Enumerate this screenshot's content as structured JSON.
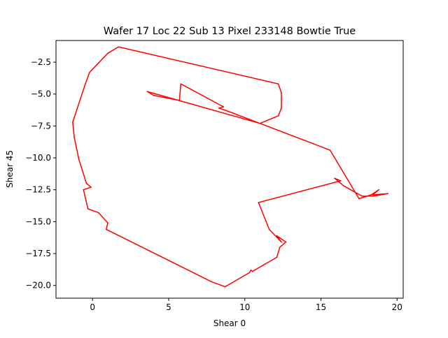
{
  "chart_data": {
    "type": "line",
    "title": "Wafer 17 Loc 22 Sub 13 Pixel 233148 Bowtie True",
    "xlabel": "Shear 0",
    "ylabel": "Shear 45",
    "xlim": [
      -2.4,
      20.4
    ],
    "ylim": [
      -21.0,
      -0.8
    ],
    "xticks": [
      0,
      5,
      10,
      15,
      20
    ],
    "xtick_labels": [
      "0",
      "5",
      "10",
      "15",
      "20"
    ],
    "yticks": [
      -2.5,
      -5.0,
      -7.5,
      -10.0,
      -12.5,
      -15.0,
      -17.5,
      -20.0
    ],
    "ytick_labels": [
      "−2.5",
      "−5.0",
      "−7.5",
      "−10.0",
      "−12.5",
      "−15.0",
      "−17.5",
      "−20.0"
    ],
    "grid": false,
    "legend": "none",
    "series": [
      {
        "color": "#ff0000",
        "x": [
          3.6,
          4.0,
          5.7,
          5.8,
          8.6,
          8.3,
          8.8,
          11.0,
          12.2,
          12.4,
          12.4,
          12.2,
          1.7,
          1.0,
          -0.2,
          -0.5,
          -1.3,
          -1.2,
          -0.9,
          -0.4,
          -0.1,
          -0.6,
          -0.3,
          0.4,
          1.0,
          0.9,
          7.8,
          8.7,
          10.3,
          10.4,
          10.5,
          12.1,
          12.3,
          12.7,
          12.1,
          12.4,
          11.6,
          10.9,
          16.3,
          15.9,
          16.2,
          16.5,
          17.4,
          17.7,
          18.4,
          19.4,
          18.4,
          18.8,
          18.3,
          17.5,
          15.6,
          11.0,
          3.6
        ],
        "y": [
          -4.8,
          -5.1,
          -5.5,
          -4.2,
          -6.0,
          -6.1,
          -6.3,
          -7.3,
          -6.7,
          -6.1,
          -4.9,
          -4.2,
          -1.3,
          -1.8,
          -3.3,
          -4.3,
          -7.2,
          -8.4,
          -10.1,
          -12.0,
          -12.3,
          -12.5,
          -14.0,
          -14.3,
          -15.1,
          -15.6,
          -19.7,
          -20.1,
          -19.0,
          -18.8,
          -18.9,
          -17.8,
          -17.0,
          -16.6,
          -16.1,
          -16.6,
          -15.6,
          -13.5,
          -11.8,
          -11.6,
          -11.9,
          -12.2,
          -12.8,
          -13.0,
          -13.0,
          -12.8,
          -12.9,
          -12.5,
          -12.9,
          -13.2,
          -9.4,
          -7.3,
          -4.8
        ]
      }
    ]
  }
}
